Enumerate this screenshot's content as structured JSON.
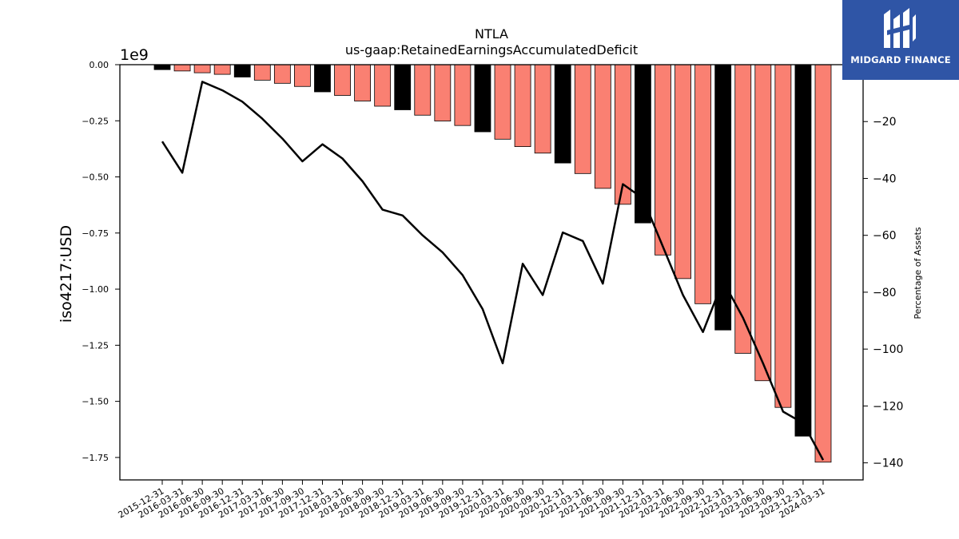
{
  "chart_data": {
    "type": "bar+line",
    "title": "NTLA",
    "subtitle": "us-gaap:RetainedEarningsAccumulatedDeficit",
    "ylabel": "iso4217:USD",
    "y_offset_label": "1e9",
    "y2label": "Percentage of Assets",
    "ylim": [
      -1.85,
      0.0
    ],
    "y2lim": [
      -146,
      0
    ],
    "yticks": [
      "0.00",
      "−0.25",
      "−0.50",
      "−0.75",
      "−1.00",
      "−1.25",
      "−1.50",
      "−1.75"
    ],
    "yticks_values": [
      0.0,
      -0.25,
      -0.5,
      -0.75,
      -1.0,
      -1.25,
      -1.5,
      -1.75
    ],
    "y2ticks": [
      "−20",
      "−40",
      "−60",
      "−80",
      "−100",
      "−120",
      "−140"
    ],
    "y2ticks_values": [
      -20,
      -40,
      -60,
      -80,
      -100,
      -120,
      -140
    ],
    "categories": [
      "2015-12-31",
      "2016-03-31",
      "2016-06-30",
      "2016-09-30",
      "2016-12-31",
      "2017-03-31",
      "2017-06-30",
      "2017-09-30",
      "2017-12-31",
      "2018-03-31",
      "2018-06-30",
      "2018-09-30",
      "2018-12-31",
      "2019-03-31",
      "2019-06-30",
      "2019-09-30",
      "2019-12-31",
      "2020-03-31",
      "2020-06-30",
      "2020-09-30",
      "2020-12-31",
      "2021-03-31",
      "2021-06-30",
      "2021-09-30",
      "2021-12-31",
      "2022-03-31",
      "2022-06-30",
      "2022-09-30",
      "2022-12-31",
      "2023-03-31",
      "2023-06-30",
      "2023-09-30",
      "2023-12-31",
      "2024-03-31"
    ],
    "bar_values": [
      -0.022,
      -0.028,
      -0.036,
      -0.043,
      -0.055,
      -0.069,
      -0.083,
      -0.097,
      -0.121,
      -0.137,
      -0.162,
      -0.185,
      -0.201,
      -0.225,
      -0.251,
      -0.271,
      -0.299,
      -0.332,
      -0.365,
      -0.394,
      -0.438,
      -0.485,
      -0.551,
      -0.622,
      -0.705,
      -0.848,
      -0.953,
      -1.065,
      -1.182,
      -1.286,
      -1.408,
      -1.527,
      -1.655,
      -1.771
    ],
    "bar_kinds": [
      "fy",
      "q",
      "q",
      "q",
      "fy",
      "q",
      "q",
      "q",
      "fy",
      "q",
      "q",
      "q",
      "fy",
      "q",
      "q",
      "q",
      "fy",
      "q",
      "q",
      "q",
      "fy",
      "q",
      "q",
      "q",
      "fy",
      "q",
      "q",
      "q",
      "fy",
      "q",
      "q",
      "q",
      "fy",
      "q"
    ],
    "line_values": [
      -27,
      -38,
      -6,
      -9,
      -13,
      -19,
      -26,
      -34,
      -28,
      -33,
      -41,
      -51,
      -53,
      -60,
      -66,
      -74,
      -86,
      -105,
      -70,
      -81,
      -59,
      -62,
      -77,
      -42,
      -47,
      -64,
      -81,
      -94,
      -76,
      -89,
      -105,
      -122,
      -126,
      -139
    ],
    "colors": {
      "quarter_bar": "#fa8072",
      "annual_bar": "#000000",
      "line": "#000000",
      "bar_edge": "#000000"
    }
  },
  "logo": {
    "text": "MIDGARD FINANCE",
    "bg": "#2f55a6"
  }
}
